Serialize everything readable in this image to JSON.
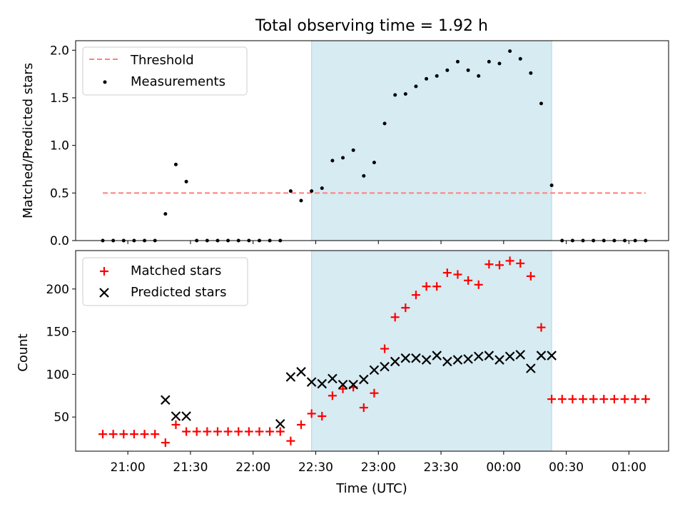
{
  "chart_data": [
    {
      "type": "scatter",
      "title": "Total observing time = 1.92 h",
      "xlabel": "",
      "ylabel": "Matched/Predicted stars",
      "ylim": [
        0,
        2.1
      ],
      "yticks": [
        "0.0",
        "0.5",
        "1.0",
        "1.5",
        "2.0"
      ],
      "ytick_values": [
        0,
        0.5,
        1.0,
        1.5,
        2.0
      ],
      "legend_position": "top-left",
      "shaded_region_minutes": [
        88,
        203
      ],
      "threshold": {
        "name": "Threshold",
        "value": 0.5,
        "x_range_minutes": [
          -12,
          248
        ]
      },
      "series": [
        {
          "name": "Measurements",
          "x_minutes": [
            -12,
            -7,
            -2,
            3,
            8,
            13,
            18,
            23,
            28,
            33,
            38,
            43,
            48,
            53,
            58,
            63,
            68,
            73,
            78,
            83,
            88,
            93,
            98,
            103,
            108,
            113,
            118,
            123,
            128,
            133,
            138,
            143,
            148,
            153,
            158,
            163,
            168,
            173,
            178,
            183,
            188,
            193,
            198,
            203,
            208,
            213,
            218,
            223,
            228,
            233,
            238,
            243,
            248
          ],
          "values": [
            0,
            0,
            0,
            0,
            0,
            0,
            0.28,
            0.8,
            0.62,
            0,
            0,
            0,
            0,
            0,
            0,
            0,
            0,
            0,
            0.52,
            0.42,
            0.52,
            0.55,
            0.84,
            0.87,
            0.95,
            0.68,
            0.82,
            1.23,
            1.53,
            1.54,
            1.62,
            1.7,
            1.73,
            1.79,
            1.88,
            1.79,
            1.73,
            1.88,
            1.86,
            1.99,
            1.91,
            1.76,
            1.44,
            0.58,
            0,
            0,
            0,
            0,
            0,
            0,
            0,
            0,
            0
          ]
        }
      ]
    },
    {
      "type": "scatter",
      "xlabel": "Time (UTC)",
      "ylabel": "Count",
      "ylim": [
        10,
        245
      ],
      "yticks": [
        "50",
        "100",
        "150",
        "200"
      ],
      "ytick_values": [
        50,
        100,
        150,
        200
      ],
      "xticks": [
        "21:00",
        "21:30",
        "22:00",
        "22:30",
        "23:00",
        "23:30",
        "00:00",
        "00:30",
        "01:00"
      ],
      "xtick_minutes": [
        0,
        30,
        60,
        90,
        120,
        150,
        180,
        210,
        240
      ],
      "xlim_minutes": [
        -25,
        259
      ],
      "legend_position": "top-left",
      "shaded_region_minutes": [
        88,
        203
      ],
      "series": [
        {
          "name": "Matched stars",
          "color": "#ff0000",
          "marker": "plus",
          "x_minutes": [
            -12,
            -7,
            -2,
            3,
            8,
            13,
            18,
            23,
            28,
            33,
            38,
            43,
            48,
            53,
            58,
            63,
            68,
            73,
            78,
            83,
            88,
            93,
            98,
            103,
            108,
            113,
            118,
            123,
            128,
            133,
            138,
            143,
            148,
            153,
            158,
            163,
            168,
            173,
            178,
            183,
            188,
            193,
            198,
            203,
            208,
            213,
            218,
            223,
            228,
            233,
            238,
            243,
            248
          ],
          "values": [
            30,
            30,
            30,
            30,
            30,
            30,
            20,
            41,
            33,
            33,
            33,
            33,
            33,
            33,
            33,
            33,
            33,
            33,
            22,
            41,
            54,
            51,
            75,
            83,
            85,
            61,
            78,
            130,
            167,
            178,
            193,
            203,
            203,
            219,
            217,
            210,
            205,
            229,
            228,
            233,
            230,
            215,
            155,
            71,
            71,
            71,
            71,
            71,
            71,
            71,
            71,
            71,
            71
          ]
        },
        {
          "name": "Predicted stars",
          "color": "#000000",
          "marker": "x",
          "x_minutes": [
            18,
            23,
            28,
            73,
            78,
            83,
            88,
            93,
            98,
            103,
            108,
            113,
            118,
            123,
            128,
            133,
            138,
            143,
            148,
            153,
            158,
            163,
            168,
            173,
            178,
            183,
            188,
            193,
            198,
            203
          ],
          "values": [
            70,
            51,
            51,
            42,
            97,
            103,
            91,
            89,
            95,
            88,
            88,
            94,
            105,
            109,
            115,
            119,
            119,
            117,
            122,
            115,
            117,
            118,
            121,
            122,
            117,
            121,
            123,
            107,
            122,
            122
          ]
        }
      ]
    }
  ],
  "colors": {
    "threshold": "#ff7f7f",
    "shade": "#add8e6",
    "matched": "#ff0000",
    "predicted": "#000000",
    "measurement": "#000000"
  }
}
